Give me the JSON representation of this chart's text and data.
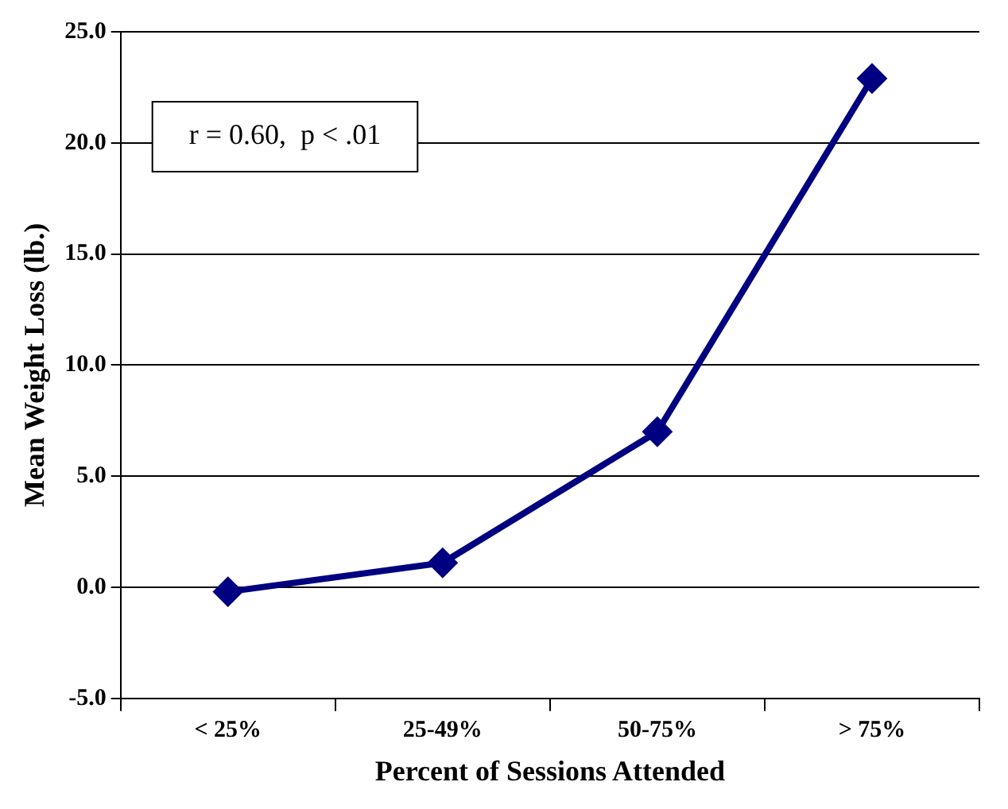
{
  "chart_data": {
    "type": "line",
    "xlabel": "Percent of Sessions Attended",
    "ylabel": "Mean Weight Loss (lb.)",
    "categories": [
      "< 25%",
      "25-49%",
      "50-75%",
      "> 75%"
    ],
    "series": [
      {
        "color": "#000080",
        "values": [
          -0.2,
          1.1,
          7.0,
          22.9
        ]
      }
    ],
    "ylim": [
      -5,
      25
    ],
    "yticks": [
      {
        "value": -5,
        "label": "-5.0"
      },
      {
        "value": 0,
        "label": "0.0"
      },
      {
        "value": 5,
        "label": "5.0"
      },
      {
        "value": 10,
        "label": "10.0"
      },
      {
        "value": 15,
        "label": "15.0"
      },
      {
        "value": 20,
        "label": "20.0"
      },
      {
        "value": 25,
        "label": "25.0"
      }
    ],
    "annotations": [
      "r = 0.60,  p < .01"
    ],
    "grid": "y",
    "legend": false,
    "marker": "diamond",
    "line_style": "solid"
  }
}
